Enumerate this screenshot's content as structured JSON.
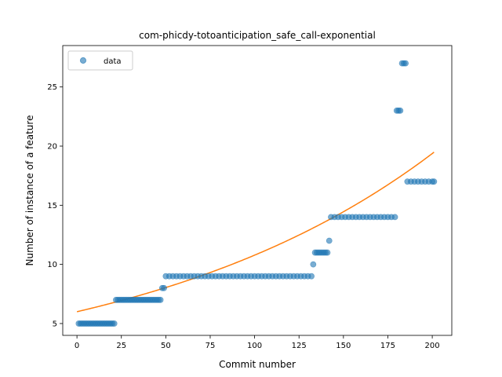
{
  "chart_data": {
    "type": "scatter",
    "title": "com-phicdy-totoanticipation_safe_call-exponential",
    "xlabel": "Commit number",
    "ylabel": "Number of instance of a feature",
    "xlim": [
      -8,
      211
    ],
    "ylim": [
      4.0,
      28.5
    ],
    "xticks": [
      0,
      25,
      50,
      75,
      100,
      125,
      150,
      175,
      200
    ],
    "yticks": [
      5,
      10,
      15,
      20,
      25
    ],
    "grid": false,
    "legend": {
      "placement": "top-left",
      "entries": [
        "data"
      ]
    },
    "series": [
      {
        "name": "data",
        "kind": "scatter",
        "color": "#1f77b4",
        "points": [
          [
            1,
            5
          ],
          [
            2,
            5
          ],
          [
            3,
            5
          ],
          [
            4,
            5
          ],
          [
            5,
            5
          ],
          [
            6,
            5
          ],
          [
            7,
            5
          ],
          [
            8,
            5
          ],
          [
            9,
            5
          ],
          [
            10,
            5
          ],
          [
            11,
            5
          ],
          [
            12,
            5
          ],
          [
            13,
            5
          ],
          [
            14,
            5
          ],
          [
            15,
            5
          ],
          [
            16,
            5
          ],
          [
            17,
            5
          ],
          [
            18,
            5
          ],
          [
            19,
            5
          ],
          [
            20,
            5
          ],
          [
            21,
            5
          ],
          [
            22,
            7
          ],
          [
            23,
            7
          ],
          [
            24,
            7
          ],
          [
            25,
            7
          ],
          [
            26,
            7
          ],
          [
            27,
            7
          ],
          [
            28,
            7
          ],
          [
            29,
            7
          ],
          [
            30,
            7
          ],
          [
            31,
            7
          ],
          [
            32,
            7
          ],
          [
            33,
            7
          ],
          [
            34,
            7
          ],
          [
            35,
            7
          ],
          [
            36,
            7
          ],
          [
            37,
            7
          ],
          [
            38,
            7
          ],
          [
            39,
            7
          ],
          [
            40,
            7
          ],
          [
            41,
            7
          ],
          [
            42,
            7
          ],
          [
            43,
            7
          ],
          [
            44,
            7
          ],
          [
            45,
            7
          ],
          [
            46,
            7
          ],
          [
            47,
            7
          ],
          [
            48,
            8
          ],
          [
            49,
            8
          ],
          [
            50,
            9
          ],
          [
            52,
            9
          ],
          [
            54,
            9
          ],
          [
            56,
            9
          ],
          [
            58,
            9
          ],
          [
            60,
            9
          ],
          [
            62,
            9
          ],
          [
            64,
            9
          ],
          [
            66,
            9
          ],
          [
            68,
            9
          ],
          [
            70,
            9
          ],
          [
            72,
            9
          ],
          [
            74,
            9
          ],
          [
            76,
            9
          ],
          [
            78,
            9
          ],
          [
            80,
            9
          ],
          [
            82,
            9
          ],
          [
            84,
            9
          ],
          [
            86,
            9
          ],
          [
            88,
            9
          ],
          [
            90,
            9
          ],
          [
            92,
            9
          ],
          [
            94,
            9
          ],
          [
            96,
            9
          ],
          [
            98,
            9
          ],
          [
            100,
            9
          ],
          [
            102,
            9
          ],
          [
            104,
            9
          ],
          [
            106,
            9
          ],
          [
            108,
            9
          ],
          [
            110,
            9
          ],
          [
            112,
            9
          ],
          [
            114,
            9
          ],
          [
            116,
            9
          ],
          [
            118,
            9
          ],
          [
            120,
            9
          ],
          [
            122,
            9
          ],
          [
            124,
            9
          ],
          [
            126,
            9
          ],
          [
            128,
            9
          ],
          [
            130,
            9
          ],
          [
            132,
            9
          ],
          [
            133,
            10
          ],
          [
            134,
            11
          ],
          [
            135,
            11
          ],
          [
            136,
            11
          ],
          [
            137,
            11
          ],
          [
            138,
            11
          ],
          [
            139,
            11
          ],
          [
            140,
            11
          ],
          [
            141,
            11
          ],
          [
            142,
            12
          ],
          [
            143,
            14
          ],
          [
            145,
            14
          ],
          [
            147,
            14
          ],
          [
            149,
            14
          ],
          [
            151,
            14
          ],
          [
            153,
            14
          ],
          [
            155,
            14
          ],
          [
            157,
            14
          ],
          [
            159,
            14
          ],
          [
            161,
            14
          ],
          [
            163,
            14
          ],
          [
            165,
            14
          ],
          [
            167,
            14
          ],
          [
            169,
            14
          ],
          [
            171,
            14
          ],
          [
            173,
            14
          ],
          [
            175,
            14
          ],
          [
            177,
            14
          ],
          [
            179,
            14
          ],
          [
            180,
            23
          ],
          [
            181,
            23
          ],
          [
            182,
            23
          ],
          [
            183,
            27
          ],
          [
            184,
            27
          ],
          [
            185,
            27
          ],
          [
            186,
            17
          ],
          [
            188,
            17
          ],
          [
            190,
            17
          ],
          [
            192,
            17
          ],
          [
            194,
            17
          ],
          [
            196,
            17
          ],
          [
            198,
            17
          ],
          [
            200,
            17
          ],
          [
            201,
            17
          ]
        ]
      },
      {
        "name": "",
        "kind": "line",
        "color": "#ff7f0e",
        "model": "exponential",
        "a": 6.0,
        "b": 0.00586,
        "x_range": [
          0,
          201
        ]
      }
    ]
  }
}
